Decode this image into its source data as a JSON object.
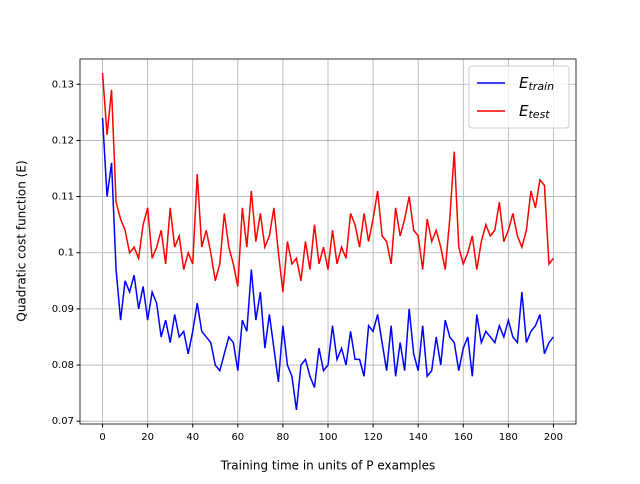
{
  "chart_data": {
    "type": "line",
    "x_label": "Training time in units of P examples",
    "y_label": "Quadratic cost function (E)",
    "x": [
      0,
      2,
      4,
      6,
      8,
      10,
      12,
      14,
      16,
      18,
      20,
      22,
      24,
      26,
      28,
      30,
      32,
      34,
      36,
      38,
      40,
      42,
      44,
      46,
      48,
      50,
      52,
      54,
      56,
      58,
      60,
      62,
      64,
      66,
      68,
      70,
      72,
      74,
      76,
      78,
      80,
      82,
      84,
      86,
      88,
      90,
      92,
      94,
      96,
      98,
      100,
      102,
      104,
      106,
      108,
      110,
      112,
      114,
      116,
      118,
      120,
      122,
      124,
      126,
      128,
      130,
      132,
      134,
      136,
      138,
      140,
      142,
      144,
      146,
      148,
      150,
      152,
      154,
      156,
      158,
      160,
      162,
      164,
      166,
      168,
      170,
      172,
      174,
      176,
      178,
      180,
      182,
      184,
      186,
      188,
      190,
      192,
      194,
      196,
      198,
      200
    ],
    "series": [
      {
        "name": "E_train",
        "color": "#0000ff",
        "values": [
          0.124,
          0.11,
          0.116,
          0.097,
          0.088,
          0.095,
          0.093,
          0.096,
          0.09,
          0.094,
          0.088,
          0.093,
          0.091,
          0.085,
          0.088,
          0.084,
          0.089,
          0.085,
          0.086,
          0.082,
          0.086,
          0.091,
          0.086,
          0.085,
          0.084,
          0.08,
          0.079,
          0.082,
          0.085,
          0.084,
          0.079,
          0.088,
          0.086,
          0.097,
          0.088,
          0.093,
          0.083,
          0.089,
          0.083,
          0.077,
          0.087,
          0.08,
          0.078,
          0.072,
          0.08,
          0.081,
          0.078,
          0.076,
          0.083,
          0.079,
          0.08,
          0.087,
          0.081,
          0.083,
          0.08,
          0.086,
          0.081,
          0.081,
          0.078,
          0.087,
          0.086,
          0.089,
          0.084,
          0.079,
          0.087,
          0.078,
          0.084,
          0.079,
          0.09,
          0.082,
          0.079,
          0.087,
          0.078,
          0.079,
          0.085,
          0.08,
          0.088,
          0.085,
          0.084,
          0.079,
          0.083,
          0.085,
          0.078,
          0.089,
          0.084,
          0.086,
          0.085,
          0.084,
          0.087,
          0.085,
          0.088,
          0.085,
          0.084,
          0.093,
          0.084,
          0.086,
          0.087,
          0.089,
          0.082,
          0.084,
          0.085
        ]
      },
      {
        "name": "E_test",
        "color": "#ff0000",
        "values": [
          0.132,
          0.121,
          0.129,
          0.109,
          0.106,
          0.104,
          0.1,
          0.101,
          0.099,
          0.105,
          0.108,
          0.099,
          0.101,
          0.104,
          0.098,
          0.108,
          0.101,
          0.103,
          0.097,
          0.1,
          0.098,
          0.114,
          0.101,
          0.104,
          0.1,
          0.095,
          0.098,
          0.107,
          0.101,
          0.098,
          0.094,
          0.108,
          0.101,
          0.111,
          0.102,
          0.107,
          0.101,
          0.103,
          0.108,
          0.1,
          0.093,
          0.102,
          0.098,
          0.099,
          0.095,
          0.102,
          0.097,
          0.105,
          0.098,
          0.101,
          0.097,
          0.104,
          0.098,
          0.101,
          0.099,
          0.107,
          0.105,
          0.101,
          0.107,
          0.102,
          0.106,
          0.111,
          0.103,
          0.102,
          0.098,
          0.108,
          0.103,
          0.106,
          0.11,
          0.104,
          0.103,
          0.097,
          0.106,
          0.102,
          0.104,
          0.101,
          0.097,
          0.106,
          0.118,
          0.101,
          0.098,
          0.1,
          0.103,
          0.097,
          0.102,
          0.105,
          0.103,
          0.104,
          0.109,
          0.102,
          0.104,
          0.107,
          0.103,
          0.101,
          0.104,
          0.111,
          0.108,
          0.113,
          0.112,
          0.098,
          0.099
        ]
      }
    ],
    "xlim": [
      -10,
      210
    ],
    "ylim": [
      0.0695,
      0.1345
    ],
    "xticks": [
      0,
      20,
      40,
      60,
      80,
      100,
      120,
      140,
      160,
      180,
      200
    ],
    "yticks": [
      0.07,
      0.08,
      0.09,
      0.1,
      0.11,
      0.12,
      0.13
    ],
    "grid": true,
    "legend": "upper right"
  }
}
